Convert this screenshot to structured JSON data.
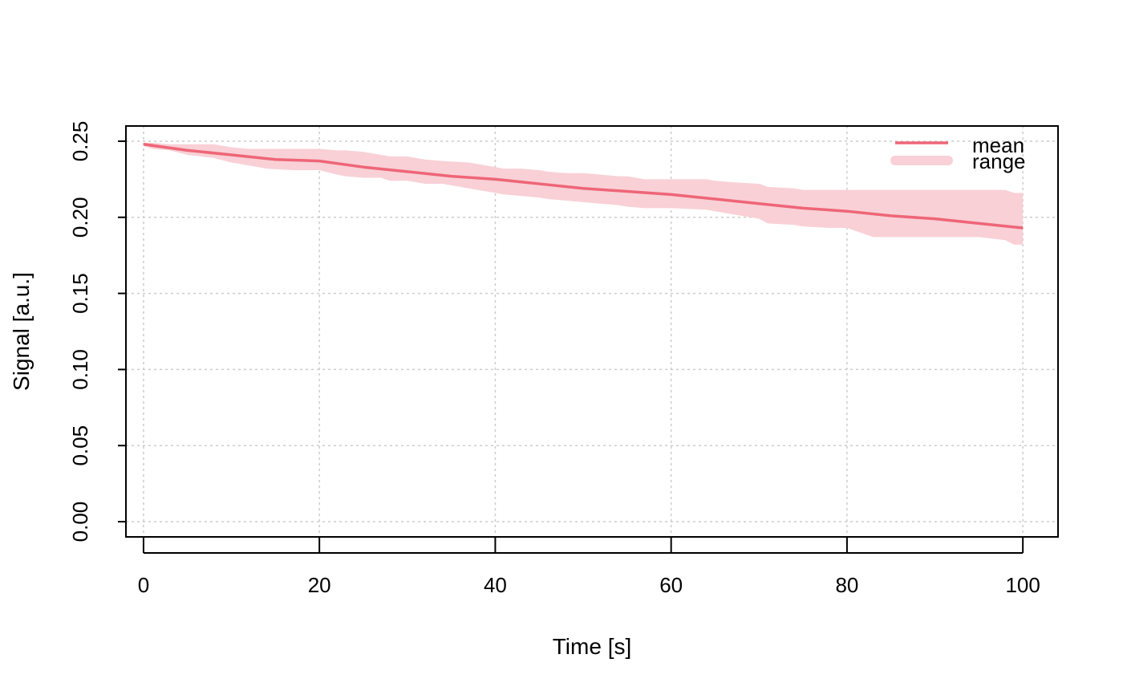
{
  "chart_data": {
    "type": "line",
    "title": "",
    "xlabel": "Time [s]",
    "ylabel": "Signal [a.u.]",
    "xlim": [
      -2,
      104
    ],
    "ylim": [
      -0.01,
      0.26
    ],
    "x_ticks": [
      0,
      20,
      40,
      60,
      80,
      100
    ],
    "x_tick_labels": [
      "0",
      "20",
      "40",
      "60",
      "80",
      "100"
    ],
    "y_ticks": [
      0.0,
      0.05,
      0.1,
      0.15,
      0.2,
      0.25
    ],
    "y_tick_labels": [
      "0.00",
      "0.05",
      "0.10",
      "0.15",
      "0.20",
      "0.25"
    ],
    "grid": true,
    "legend_position": "top-right",
    "series": [
      {
        "name": "mean",
        "color": "#EE6677",
        "x": [
          0,
          5,
          10,
          15,
          20,
          25,
          30,
          35,
          40,
          45,
          50,
          55,
          60,
          65,
          70,
          75,
          80,
          85,
          90,
          95,
          100
        ],
        "values": [
          0.248,
          0.244,
          0.241,
          0.238,
          0.237,
          0.233,
          0.23,
          0.227,
          0.225,
          0.222,
          0.219,
          0.217,
          0.215,
          0.212,
          0.209,
          0.206,
          0.204,
          0.201,
          0.199,
          0.196,
          0.193
        ]
      }
    ],
    "bands": [
      {
        "name": "range",
        "color": "#F9D0D6",
        "x": [
          0,
          1,
          3,
          5,
          8,
          10,
          12,
          14,
          17,
          20,
          22,
          23,
          25,
          27,
          28,
          30,
          32,
          34,
          37,
          38,
          40,
          41,
          43,
          45,
          46,
          48,
          50,
          52,
          54,
          55,
          57,
          60,
          64,
          65,
          67,
          70,
          71,
          74,
          75,
          78,
          80,
          81,
          82,
          83,
          86,
          90,
          95,
          98,
          99,
          100
        ],
        "low": [
          0.247,
          0.245,
          0.244,
          0.241,
          0.239,
          0.236,
          0.234,
          0.232,
          0.231,
          0.231,
          0.228,
          0.227,
          0.226,
          0.226,
          0.224,
          0.224,
          0.222,
          0.222,
          0.219,
          0.218,
          0.216,
          0.215,
          0.214,
          0.213,
          0.212,
          0.211,
          0.21,
          0.209,
          0.208,
          0.207,
          0.206,
          0.206,
          0.205,
          0.204,
          0.202,
          0.199,
          0.196,
          0.195,
          0.194,
          0.193,
          0.193,
          0.191,
          0.189,
          0.187,
          0.187,
          0.187,
          0.187,
          0.185,
          0.182,
          0.182
        ],
        "high": [
          0.249,
          0.249,
          0.248,
          0.248,
          0.248,
          0.246,
          0.245,
          0.245,
          0.245,
          0.245,
          0.244,
          0.244,
          0.243,
          0.241,
          0.24,
          0.24,
          0.238,
          0.237,
          0.236,
          0.235,
          0.233,
          0.232,
          0.232,
          0.231,
          0.23,
          0.229,
          0.229,
          0.228,
          0.227,
          0.227,
          0.225,
          0.225,
          0.225,
          0.224,
          0.223,
          0.222,
          0.22,
          0.219,
          0.218,
          0.218,
          0.218,
          0.218,
          0.218,
          0.218,
          0.218,
          0.218,
          0.218,
          0.218,
          0.216,
          0.216
        ]
      }
    ]
  }
}
